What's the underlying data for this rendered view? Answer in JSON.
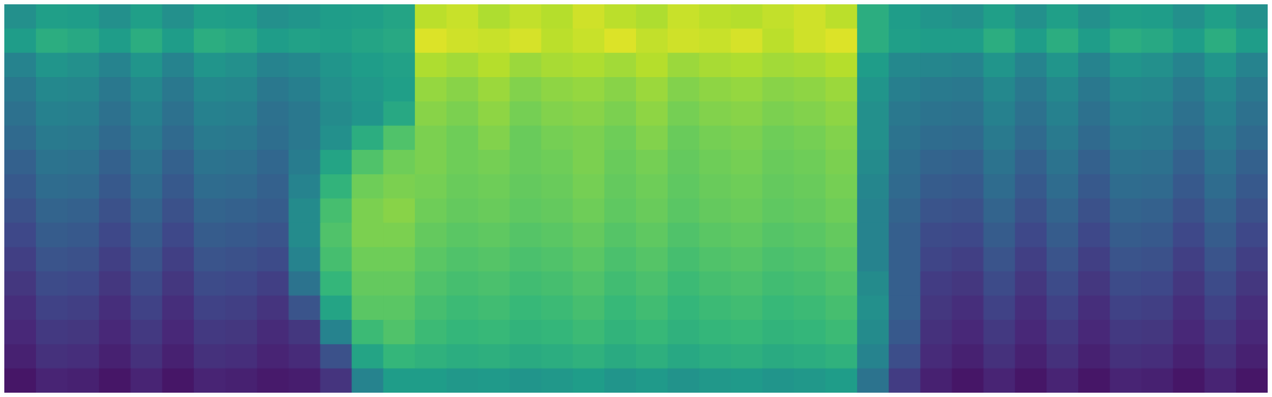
{
  "chart_data": {
    "type": "heatmap",
    "tick_labels": false,
    "color_range": [
      0,
      1
    ],
    "cells": [
      [
        0.5,
        0.56,
        0.55,
        0.5,
        0.56,
        0.5,
        0.56,
        0.55,
        0.5,
        0.52,
        0.55,
        0.56,
        0.58,
        0.9,
        0.92,
        0.88,
        0.91,
        0.89,
        0.93,
        0.9,
        0.88,
        0.92,
        0.9,
        0.89,
        0.91,
        0.93,
        0.9,
        0.62,
        0.55,
        0.52,
        0.5,
        0.56,
        0.5,
        0.56,
        0.5,
        0.56,
        0.55,
        0.5,
        0.56,
        0.5
      ],
      [
        0.55,
        0.62,
        0.6,
        0.55,
        0.62,
        0.55,
        0.62,
        0.6,
        0.55,
        0.57,
        0.56,
        0.58,
        0.6,
        0.95,
        0.93,
        0.92,
        0.94,
        0.9,
        0.92,
        0.95,
        0.91,
        0.93,
        0.92,
        0.94,
        0.9,
        0.93,
        0.95,
        0.62,
        0.56,
        0.55,
        0.55,
        0.62,
        0.55,
        0.62,
        0.55,
        0.62,
        0.6,
        0.55,
        0.62,
        0.55
      ],
      [
        0.45,
        0.52,
        0.5,
        0.45,
        0.52,
        0.45,
        0.52,
        0.5,
        0.45,
        0.47,
        0.52,
        0.55,
        0.57,
        0.88,
        0.86,
        0.89,
        0.85,
        0.87,
        0.88,
        0.86,
        0.89,
        0.85,
        0.87,
        0.88,
        0.86,
        0.87,
        0.89,
        0.55,
        0.47,
        0.46,
        0.45,
        0.52,
        0.45,
        0.52,
        0.45,
        0.52,
        0.5,
        0.45,
        0.52,
        0.45
      ],
      [
        0.4,
        0.47,
        0.46,
        0.4,
        0.47,
        0.4,
        0.47,
        0.46,
        0.4,
        0.43,
        0.5,
        0.53,
        0.56,
        0.84,
        0.82,
        0.85,
        0.81,
        0.83,
        0.84,
        0.82,
        0.85,
        0.81,
        0.83,
        0.84,
        0.82,
        0.83,
        0.85,
        0.52,
        0.43,
        0.41,
        0.4,
        0.47,
        0.4,
        0.47,
        0.4,
        0.47,
        0.46,
        0.4,
        0.47,
        0.4
      ],
      [
        0.37,
        0.44,
        0.43,
        0.37,
        0.44,
        0.37,
        0.44,
        0.43,
        0.37,
        0.4,
        0.48,
        0.52,
        0.6,
        0.82,
        0.8,
        0.83,
        0.79,
        0.81,
        0.82,
        0.8,
        0.83,
        0.79,
        0.81,
        0.82,
        0.8,
        0.81,
        0.83,
        0.5,
        0.4,
        0.38,
        0.37,
        0.44,
        0.37,
        0.44,
        0.37,
        0.44,
        0.43,
        0.37,
        0.44,
        0.37
      ],
      [
        0.34,
        0.41,
        0.4,
        0.34,
        0.41,
        0.34,
        0.41,
        0.4,
        0.36,
        0.4,
        0.5,
        0.62,
        0.72,
        0.8,
        0.78,
        0.81,
        0.77,
        0.79,
        0.8,
        0.78,
        0.81,
        0.77,
        0.79,
        0.8,
        0.78,
        0.79,
        0.81,
        0.5,
        0.38,
        0.35,
        0.34,
        0.41,
        0.34,
        0.41,
        0.34,
        0.41,
        0.4,
        0.34,
        0.41,
        0.34
      ],
      [
        0.31,
        0.38,
        0.37,
        0.31,
        0.38,
        0.31,
        0.38,
        0.37,
        0.33,
        0.42,
        0.58,
        0.72,
        0.78,
        0.8,
        0.78,
        0.79,
        0.77,
        0.78,
        0.8,
        0.77,
        0.79,
        0.76,
        0.78,
        0.79,
        0.77,
        0.78,
        0.8,
        0.48,
        0.36,
        0.32,
        0.31,
        0.38,
        0.31,
        0.38,
        0.31,
        0.38,
        0.37,
        0.31,
        0.38,
        0.31
      ],
      [
        0.28,
        0.35,
        0.34,
        0.28,
        0.35,
        0.28,
        0.35,
        0.34,
        0.31,
        0.45,
        0.65,
        0.78,
        0.8,
        0.79,
        0.77,
        0.78,
        0.76,
        0.77,
        0.79,
        0.76,
        0.78,
        0.75,
        0.77,
        0.78,
        0.76,
        0.77,
        0.79,
        0.46,
        0.34,
        0.29,
        0.28,
        0.35,
        0.28,
        0.35,
        0.28,
        0.35,
        0.34,
        0.28,
        0.35,
        0.28
      ],
      [
        0.25,
        0.32,
        0.31,
        0.25,
        0.32,
        0.25,
        0.32,
        0.31,
        0.29,
        0.48,
        0.7,
        0.8,
        0.82,
        0.78,
        0.76,
        0.77,
        0.75,
        0.76,
        0.78,
        0.75,
        0.77,
        0.74,
        0.76,
        0.77,
        0.75,
        0.76,
        0.78,
        0.45,
        0.32,
        0.26,
        0.25,
        0.32,
        0.25,
        0.32,
        0.25,
        0.32,
        0.31,
        0.25,
        0.32,
        0.25
      ],
      [
        0.22,
        0.29,
        0.28,
        0.22,
        0.29,
        0.22,
        0.29,
        0.28,
        0.26,
        0.48,
        0.72,
        0.8,
        0.8,
        0.76,
        0.74,
        0.75,
        0.73,
        0.74,
        0.76,
        0.73,
        0.75,
        0.72,
        0.74,
        0.75,
        0.73,
        0.74,
        0.76,
        0.45,
        0.3,
        0.23,
        0.22,
        0.29,
        0.22,
        0.29,
        0.22,
        0.29,
        0.28,
        0.22,
        0.29,
        0.22
      ],
      [
        0.19,
        0.26,
        0.25,
        0.19,
        0.26,
        0.19,
        0.26,
        0.25,
        0.23,
        0.45,
        0.7,
        0.78,
        0.78,
        0.74,
        0.72,
        0.73,
        0.71,
        0.72,
        0.74,
        0.71,
        0.73,
        0.7,
        0.72,
        0.73,
        0.71,
        0.72,
        0.74,
        0.45,
        0.3,
        0.21,
        0.19,
        0.26,
        0.19,
        0.26,
        0.19,
        0.26,
        0.25,
        0.19,
        0.26,
        0.19
      ],
      [
        0.16,
        0.23,
        0.22,
        0.16,
        0.23,
        0.16,
        0.23,
        0.22,
        0.19,
        0.38,
        0.66,
        0.76,
        0.76,
        0.72,
        0.7,
        0.71,
        0.69,
        0.7,
        0.72,
        0.69,
        0.71,
        0.68,
        0.7,
        0.71,
        0.69,
        0.7,
        0.72,
        0.48,
        0.3,
        0.18,
        0.16,
        0.23,
        0.16,
        0.23,
        0.16,
        0.23,
        0.22,
        0.16,
        0.23,
        0.16
      ],
      [
        0.13,
        0.2,
        0.19,
        0.13,
        0.2,
        0.13,
        0.2,
        0.19,
        0.15,
        0.26,
        0.58,
        0.74,
        0.74,
        0.7,
        0.68,
        0.69,
        0.67,
        0.68,
        0.7,
        0.67,
        0.69,
        0.66,
        0.68,
        0.69,
        0.67,
        0.68,
        0.7,
        0.5,
        0.3,
        0.16,
        0.13,
        0.2,
        0.13,
        0.2,
        0.13,
        0.2,
        0.19,
        0.13,
        0.2,
        0.13
      ],
      [
        0.11,
        0.17,
        0.16,
        0.11,
        0.17,
        0.11,
        0.17,
        0.16,
        0.12,
        0.16,
        0.45,
        0.68,
        0.72,
        0.68,
        0.66,
        0.67,
        0.65,
        0.66,
        0.68,
        0.65,
        0.67,
        0.64,
        0.66,
        0.67,
        0.65,
        0.66,
        0.68,
        0.48,
        0.28,
        0.14,
        0.11,
        0.17,
        0.11,
        0.17,
        0.11,
        0.17,
        0.16,
        0.11,
        0.17,
        0.11
      ],
      [
        0.09,
        0.14,
        0.13,
        0.09,
        0.14,
        0.09,
        0.14,
        0.13,
        0.1,
        0.12,
        0.25,
        0.58,
        0.66,
        0.64,
        0.62,
        0.63,
        0.61,
        0.62,
        0.64,
        0.61,
        0.63,
        0.6,
        0.62,
        0.63,
        0.61,
        0.62,
        0.64,
        0.45,
        0.24,
        0.12,
        0.09,
        0.14,
        0.09,
        0.14,
        0.09,
        0.14,
        0.13,
        0.09,
        0.14,
        0.09
      ],
      [
        0.06,
        0.1,
        0.09,
        0.06,
        0.1,
        0.06,
        0.1,
        0.09,
        0.07,
        0.08,
        0.15,
        0.45,
        0.55,
        0.55,
        0.53,
        0.54,
        0.52,
        0.53,
        0.55,
        0.52,
        0.54,
        0.51,
        0.53,
        0.54,
        0.52,
        0.53,
        0.55,
        0.38,
        0.18,
        0.09,
        0.06,
        0.1,
        0.06,
        0.1,
        0.06,
        0.1,
        0.09,
        0.06,
        0.1,
        0.06
      ]
    ]
  }
}
